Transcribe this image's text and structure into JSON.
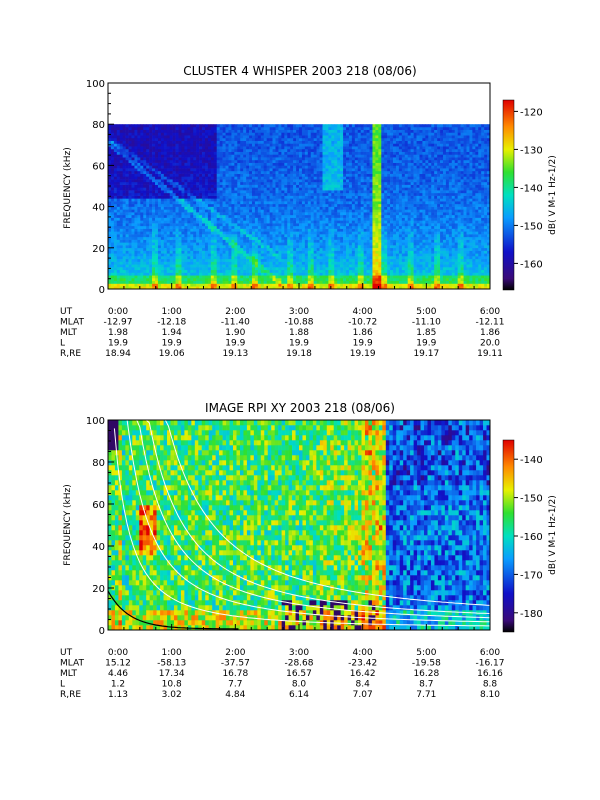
{
  "chart_data": [
    {
      "type": "heatmap",
      "title": "CLUSTER 4 WHISPER 2003 218 (08/06)",
      "ylabel": "FREQUENCY (kHz)",
      "ylim": [
        0,
        100
      ],
      "yticks": [
        "0",
        "20",
        "40",
        "60",
        "80",
        "100"
      ],
      "data_top_khz": 80,
      "xlim_hours": [
        0,
        6
      ],
      "colorbar": {
        "label": "dB( V M-1 Hz-1/2)",
        "range": [
          -167,
          -117
        ],
        "ticks": [
          "-120",
          "-130",
          "-140",
          "-150",
          "-160"
        ]
      },
      "ephemeris": {
        "labels": [
          "UT",
          "MLAT",
          "MLT",
          "L",
          "R,RE"
        ],
        "columns": [
          {
            "UT": "0:00",
            "MLAT": "-12.97",
            "MLT": "1.98",
            "L": "19.9",
            "R,RE": "18.94"
          },
          {
            "UT": "1:00",
            "MLAT": "-12.18",
            "MLT": "1.94",
            "L": "19.9",
            "R,RE": "19.06"
          },
          {
            "UT": "2:00",
            "MLAT": "-11.40",
            "MLT": "1.90",
            "L": "19.9",
            "R,RE": "19.13"
          },
          {
            "UT": "3:00",
            "MLAT": "-10.88",
            "MLT": "1.88",
            "L": "19.9",
            "R,RE": "19.18"
          },
          {
            "UT": "4:00",
            "MLAT": "-10.72",
            "MLT": "1.86",
            "L": "19.9",
            "R,RE": "19.19"
          },
          {
            "UT": "5:00",
            "MLAT": "-11.10",
            "MLT": "1.85",
            "L": "19.9",
            "R,RE": "19.17"
          },
          {
            "UT": "6:00",
            "MLAT": "-12.11",
            "MLT": "1.86",
            "L": "20.0",
            "R,RE": "19.11"
          }
        ]
      }
    },
    {
      "type": "heatmap",
      "title": "IMAGE RPI XY 2003 218 (08/06)",
      "ylabel": "FREQUENCY (kHz)",
      "ylim": [
        0,
        100
      ],
      "yticks": [
        "0",
        "20",
        "40",
        "60",
        "80",
        "100"
      ],
      "data_top_khz": 100,
      "xlim_hours": [
        0,
        6
      ],
      "colorbar": {
        "label": "dB( V M-1 Hz-1/2)",
        "range": [
          -185,
          -135
        ],
        "ticks": [
          "-140",
          "-150",
          "-160",
          "-170",
          "-180"
        ]
      },
      "ephemeris": {
        "labels": [
          "UT",
          "MLAT",
          "MLT",
          "L",
          "R,RE"
        ],
        "columns": [
          {
            "UT": "0:00",
            "MLAT": "15.12",
            "MLT": "4.46",
            "L": "1.2",
            "R,RE": "1.13"
          },
          {
            "UT": "1:00",
            "MLAT": "-58.13",
            "MLT": "17.34",
            "L": "10.8",
            "R,RE": "3.02"
          },
          {
            "UT": "2:00",
            "MLAT": "-37.57",
            "MLT": "16.78",
            "L": "7.7",
            "R,RE": "4.84"
          },
          {
            "UT": "3:00",
            "MLAT": "-28.68",
            "MLT": "16.57",
            "L": "8.0",
            "R,RE": "6.14"
          },
          {
            "UT": "4:00",
            "MLAT": "-23.42",
            "MLT": "16.42",
            "L": "8.4",
            "R,RE": "7.07"
          },
          {
            "UT": "5:00",
            "MLAT": "-19.58",
            "MLT": "16.28",
            "L": "8.7",
            "R,RE": "7.71"
          },
          {
            "UT": "6:00",
            "MLAT": "-16.17",
            "MLT": "16.16",
            "L": "8.8",
            "R,RE": "8.10"
          }
        ],
        "overlay_curves": "white plasma-frequency harmonic curves and black gyrofrequency curve"
      }
    }
  ]
}
